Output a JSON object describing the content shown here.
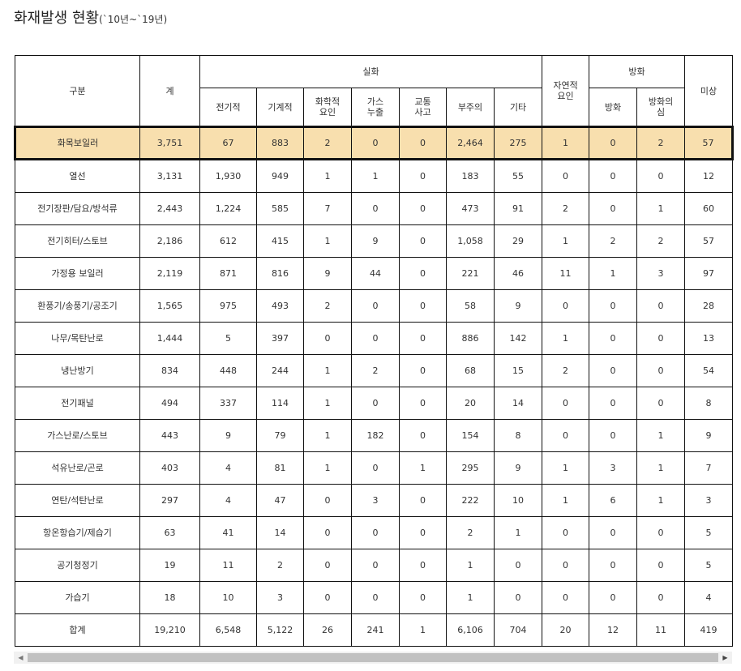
{
  "title": {
    "main": "화재발생 현황",
    "sub": "(`10년~`19년)"
  },
  "header": {
    "category": "구분",
    "total": "계",
    "accidental": "실화",
    "accidental_sub": [
      "전기적",
      "기계적",
      "화학적\n요인",
      "가스\n누출",
      "교통\n사고",
      "부주의",
      "기타"
    ],
    "natural": "자연적\n요인",
    "arson": "방화",
    "arson_sub": [
      "방화",
      "방화의\n심"
    ],
    "unknown": "미상"
  },
  "highlight_color": "#f8dfae",
  "rows": [
    [
      "화목보일러",
      "3,751",
      "67",
      "883",
      "2",
      "0",
      "0",
      "2,464",
      "275",
      "1",
      "0",
      "2",
      "57"
    ],
    [
      "열선",
      "3,131",
      "1,930",
      "949",
      "1",
      "1",
      "0",
      "183",
      "55",
      "0",
      "0",
      "0",
      "12"
    ],
    [
      "전기장판/담요/방석류",
      "2,443",
      "1,224",
      "585",
      "7",
      "0",
      "0",
      "473",
      "91",
      "2",
      "0",
      "1",
      "60"
    ],
    [
      "전기히터/스토브",
      "2,186",
      "612",
      "415",
      "1",
      "9",
      "0",
      "1,058",
      "29",
      "1",
      "2",
      "2",
      "57"
    ],
    [
      "가정용 보일러",
      "2,119",
      "871",
      "816",
      "9",
      "44",
      "0",
      "221",
      "46",
      "11",
      "1",
      "3",
      "97"
    ],
    [
      "환풍기/송풍기/공조기",
      "1,565",
      "975",
      "493",
      "2",
      "0",
      "0",
      "58",
      "9",
      "0",
      "0",
      "0",
      "28"
    ],
    [
      "나무/목탄난로",
      "1,444",
      "5",
      "397",
      "0",
      "0",
      "0",
      "886",
      "142",
      "1",
      "0",
      "0",
      "13"
    ],
    [
      "냉난방기",
      "834",
      "448",
      "244",
      "1",
      "2",
      "0",
      "68",
      "15",
      "2",
      "0",
      "0",
      "54"
    ],
    [
      "전기패널",
      "494",
      "337",
      "114",
      "1",
      "0",
      "0",
      "20",
      "14",
      "0",
      "0",
      "0",
      "8"
    ],
    [
      "가스난로/스토브",
      "443",
      "9",
      "79",
      "1",
      "182",
      "0",
      "154",
      "8",
      "0",
      "0",
      "1",
      "9"
    ],
    [
      "석유난로/곤로",
      "403",
      "4",
      "81",
      "1",
      "0",
      "1",
      "295",
      "9",
      "1",
      "3",
      "1",
      "7"
    ],
    [
      "연탄/석탄난로",
      "297",
      "4",
      "47",
      "0",
      "3",
      "0",
      "222",
      "10",
      "1",
      "6",
      "1",
      "3"
    ],
    [
      "항온항습기/제습기",
      "63",
      "41",
      "14",
      "0",
      "0",
      "0",
      "2",
      "1",
      "0",
      "0",
      "0",
      "5"
    ],
    [
      "공기청정기",
      "19",
      "11",
      "2",
      "0",
      "0",
      "0",
      "1",
      "0",
      "0",
      "0",
      "0",
      "5"
    ],
    [
      "가습기",
      "18",
      "10",
      "3",
      "0",
      "0",
      "0",
      "1",
      "0",
      "0",
      "0",
      "0",
      "4"
    ],
    [
      "합계",
      "19,210",
      "6,548",
      "5,122",
      "26",
      "241",
      "1",
      "6,106",
      "704",
      "20",
      "12",
      "11",
      "419"
    ]
  ]
}
